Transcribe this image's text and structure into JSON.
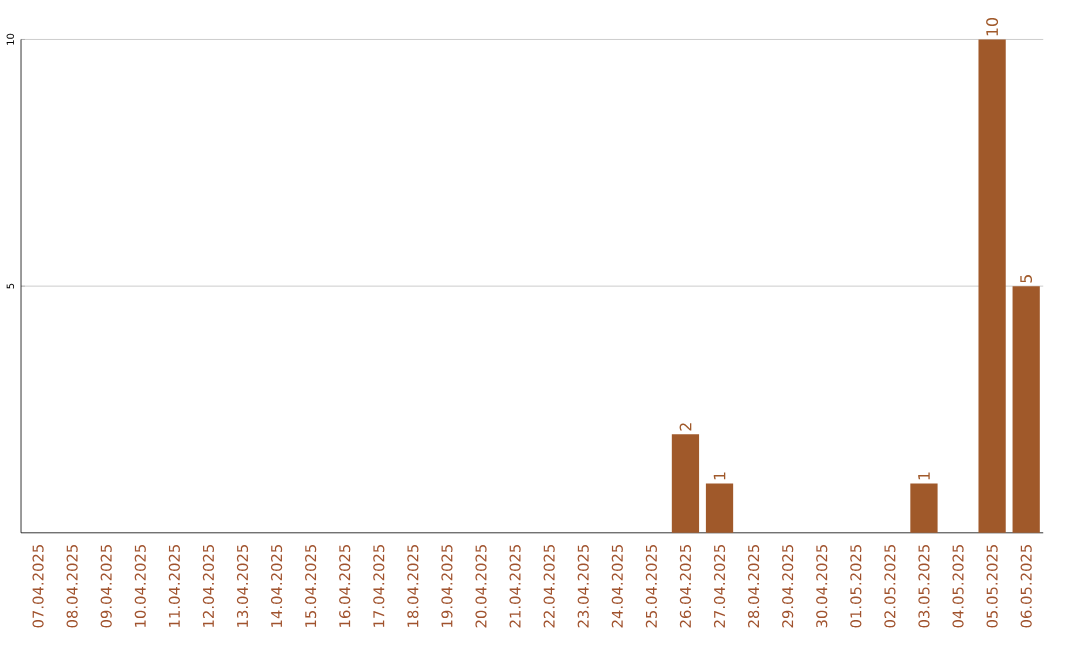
{
  "chart_data": {
    "type": "bar",
    "categories": [
      "07.04.2025",
      "08.04.2025",
      "09.04.2025",
      "10.04.2025",
      "11.04.2025",
      "12.04.2025",
      "13.04.2025",
      "14.04.2025",
      "15.04.2025",
      "16.04.2025",
      "17.04.2025",
      "18.04.2025",
      "19.04.2025",
      "20.04.2025",
      "21.04.2025",
      "22.04.2025",
      "23.04.2025",
      "24.04.2025",
      "25.04.2025",
      "26.04.2025",
      "27.04.2025",
      "28.04.2025",
      "29.04.2025",
      "30.04.2025",
      "01.05.2025",
      "02.05.2025",
      "03.05.2025",
      "04.05.2025",
      "05.05.2025",
      "06.05.2025"
    ],
    "values": [
      0,
      0,
      0,
      0,
      0,
      0,
      0,
      0,
      0,
      0,
      0,
      0,
      0,
      0,
      0,
      0,
      0,
      0,
      0,
      2,
      1,
      0,
      0,
      0,
      0,
      0,
      1,
      0,
      10,
      5
    ],
    "value_labels": [
      null,
      null,
      null,
      null,
      null,
      null,
      null,
      null,
      null,
      null,
      null,
      null,
      null,
      null,
      null,
      null,
      null,
      null,
      null,
      "2",
      "1",
      null,
      null,
      null,
      null,
      null,
      "1",
      null,
      "10",
      "5"
    ],
    "color": "#a0592a",
    "ylim": [
      0,
      10
    ],
    "yticks": [
      5,
      10
    ],
    "grid": "y"
  }
}
